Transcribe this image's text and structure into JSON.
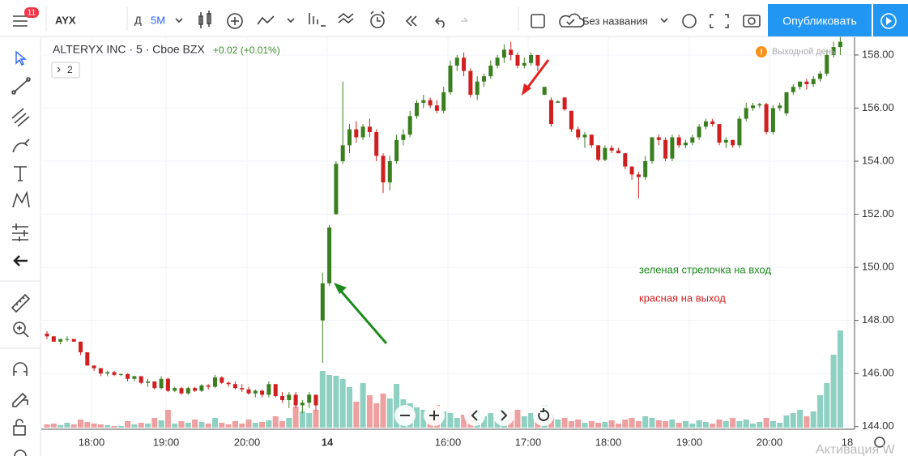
{
  "toolbar": {
    "badge": "11",
    "symbol": "AYX",
    "interval_prefix": "Д",
    "interval": "5М",
    "layout_name": "Без названия",
    "publish": "Опубликовать"
  },
  "legend": {
    "title": "ALTERYX INC · 5 · Cboe BZX",
    "change": "+0.02 (+0.01%)",
    "collapsed": "2",
    "status": "Выходной день"
  },
  "chart_data": {
    "type": "candlestick",
    "candles": [
      [
        147.5,
        147.6,
        147.3,
        147.4,
        4
      ],
      [
        147.4,
        147.4,
        147.2,
        147.2,
        5
      ],
      [
        147.2,
        147.3,
        147.1,
        147.3,
        3
      ],
      [
        147.3,
        147.4,
        147.2,
        147.3,
        6
      ],
      [
        147.3,
        147.3,
        147.2,
        147.2,
        4
      ],
      [
        147.2,
        147.2,
        146.7,
        146.8,
        10
      ],
      [
        146.8,
        146.8,
        146.3,
        146.3,
        7
      ],
      [
        146.3,
        146.3,
        146.1,
        146.2,
        5
      ],
      [
        146.2,
        146.2,
        145.9,
        146.0,
        4
      ],
      [
        146.0,
        146.1,
        145.9,
        146.05,
        3
      ],
      [
        146.05,
        146.1,
        145.9,
        145.95,
        2
      ],
      [
        145.95,
        146.0,
        145.9,
        145.98,
        2
      ],
      [
        145.98,
        146.0,
        145.7,
        145.8,
        8
      ],
      [
        145.8,
        145.9,
        145.7,
        145.9,
        4
      ],
      [
        145.9,
        145.9,
        145.6,
        145.65,
        6
      ],
      [
        145.65,
        145.8,
        145.5,
        145.7,
        5
      ],
      [
        145.7,
        145.7,
        145.4,
        145.45,
        12
      ],
      [
        145.45,
        145.9,
        145.4,
        145.8,
        9
      ],
      [
        145.8,
        145.85,
        145.3,
        145.35,
        22
      ],
      [
        145.35,
        145.5,
        145.3,
        145.45,
        5
      ],
      [
        145.45,
        145.5,
        145.2,
        145.25,
        8
      ],
      [
        145.25,
        145.5,
        145.2,
        145.45,
        6
      ],
      [
        145.45,
        145.5,
        145.3,
        145.35,
        10
      ],
      [
        145.35,
        145.6,
        145.3,
        145.55,
        7
      ],
      [
        145.55,
        145.6,
        145.4,
        145.5,
        5
      ],
      [
        145.5,
        145.95,
        145.45,
        145.85,
        12
      ],
      [
        145.85,
        145.9,
        145.6,
        145.65,
        6
      ],
      [
        145.65,
        145.7,
        145.5,
        145.6,
        4
      ],
      [
        145.6,
        145.7,
        145.4,
        145.45,
        8
      ],
      [
        145.45,
        145.6,
        145.3,
        145.4,
        5
      ],
      [
        145.4,
        145.5,
        145.2,
        145.25,
        10
      ],
      [
        145.25,
        145.4,
        145.1,
        145.35,
        6
      ],
      [
        145.35,
        145.4,
        145.1,
        145.2,
        7
      ],
      [
        145.2,
        145.7,
        145.1,
        145.6,
        9
      ],
      [
        145.6,
        145.6,
        145.1,
        145.15,
        14
      ],
      [
        145.15,
        145.3,
        144.9,
        145.0,
        8
      ],
      [
        145.0,
        145.3,
        144.7,
        145.2,
        12
      ],
      [
        145.2,
        145.3,
        144.7,
        144.8,
        26
      ],
      [
        144.8,
        145.0,
        144.5,
        144.9,
        20
      ],
      [
        144.9,
        145.3,
        144.7,
        145.2,
        18
      ],
      [
        145.2,
        145.2,
        144.6,
        144.8,
        22
      ],
      [
        148.0,
        149.8,
        146.4,
        149.4,
        70
      ],
      [
        149.4,
        151.6,
        149.3,
        151.5,
        65
      ],
      [
        152.0,
        154.0,
        152.0,
        153.9,
        64
      ],
      [
        154.0,
        157.0,
        153.9,
        154.6,
        60
      ],
      [
        154.6,
        155.4,
        154.3,
        155.2,
        50
      ],
      [
        155.2,
        155.5,
        154.7,
        154.9,
        32
      ],
      [
        154.9,
        155.4,
        154.8,
        155.3,
        55
      ],
      [
        155.3,
        155.6,
        154.9,
        155.1,
        40
      ],
      [
        155.1,
        155.2,
        154.0,
        154.2,
        30
      ],
      [
        154.2,
        154.3,
        152.8,
        153.2,
        42
      ],
      [
        153.2,
        154.2,
        152.9,
        154.0,
        36
      ],
      [
        154.0,
        155.0,
        153.9,
        154.8,
        54
      ],
      [
        154.8,
        155.2,
        154.6,
        155.0,
        35
      ],
      [
        155.0,
        155.9,
        154.9,
        155.7,
        30
      ],
      [
        155.7,
        156.3,
        155.6,
        156.2,
        25
      ],
      [
        156.2,
        156.5,
        156.0,
        156.3,
        22
      ],
      [
        156.3,
        156.4,
        156.0,
        156.1,
        14
      ],
      [
        156.1,
        156.3,
        155.8,
        155.9,
        28
      ],
      [
        155.9,
        156.8,
        155.8,
        156.6,
        20
      ],
      [
        156.6,
        157.8,
        156.5,
        157.6,
        18
      ],
      [
        157.6,
        158.0,
        157.4,
        157.9,
        12
      ],
      [
        157.9,
        158.1,
        157.2,
        157.4,
        16
      ],
      [
        157.4,
        157.5,
        156.4,
        156.5,
        22
      ],
      [
        156.5,
        157.2,
        156.3,
        157.0,
        20
      ],
      [
        157.0,
        157.3,
        156.8,
        157.2,
        14
      ],
      [
        157.2,
        157.8,
        157.1,
        157.6,
        18
      ],
      [
        157.6,
        158.0,
        157.5,
        157.9,
        15
      ],
      [
        157.9,
        158.4,
        157.7,
        158.2,
        24
      ],
      [
        158.2,
        158.5,
        157.8,
        158.0,
        20
      ],
      [
        158.0,
        158.1,
        157.5,
        157.6,
        22
      ],
      [
        157.6,
        157.9,
        157.5,
        157.7,
        14
      ],
      [
        157.7,
        158.1,
        157.6,
        158.0,
        18
      ],
      [
        158.0,
        158.0,
        157.4,
        157.6,
        10
      ],
      [
        156.5,
        156.8,
        156.5,
        156.8,
        28
      ],
      [
        156.3,
        156.4,
        155.3,
        155.4,
        16
      ],
      [
        156.2,
        156.3,
        156.2,
        156.25,
        10
      ],
      [
        156.4,
        156.4,
        155.9,
        155.95,
        12
      ],
      [
        155.9,
        155.9,
        155.1,
        155.2,
        8
      ],
      [
        155.2,
        155.3,
        154.8,
        154.9,
        10
      ],
      [
        154.9,
        155.1,
        154.5,
        155.0,
        6
      ],
      [
        155.0,
        155.0,
        154.5,
        154.6,
        8
      ],
      [
        154.6,
        154.6,
        154.0,
        154.05,
        6
      ],
      [
        154.05,
        154.6,
        154.0,
        154.5,
        7
      ],
      [
        154.5,
        154.6,
        154.3,
        154.4,
        9
      ],
      [
        154.4,
        154.5,
        154.3,
        154.3,
        5
      ],
      [
        154.3,
        154.3,
        153.7,
        153.8,
        10
      ],
      [
        153.8,
        153.8,
        153.3,
        153.5,
        12
      ],
      [
        153.5,
        153.6,
        152.6,
        153.4,
        8
      ],
      [
        153.4,
        154.2,
        153.3,
        154.0,
        14
      ],
      [
        154.0,
        154.9,
        153.9,
        154.9,
        12
      ],
      [
        154.9,
        155.0,
        154.6,
        154.8,
        9
      ],
      [
        154.8,
        154.9,
        154.0,
        154.1,
        8
      ],
      [
        154.1,
        155.0,
        154.0,
        154.9,
        10
      ],
      [
        154.9,
        155.0,
        154.5,
        154.6,
        6
      ],
      [
        154.6,
        154.8,
        154.5,
        154.7,
        8
      ],
      [
        154.7,
        155.0,
        154.6,
        154.9,
        5
      ],
      [
        154.9,
        155.4,
        154.8,
        155.3,
        9
      ],
      [
        155.3,
        155.6,
        155.2,
        155.5,
        7
      ],
      [
        155.5,
        155.6,
        155.3,
        155.4,
        5
      ],
      [
        155.4,
        155.4,
        154.6,
        154.7,
        10
      ],
      [
        154.7,
        154.9,
        154.5,
        154.8,
        8
      ],
      [
        154.8,
        154.8,
        154.5,
        154.6,
        12
      ],
      [
        154.6,
        155.7,
        154.5,
        155.6,
        8
      ],
      [
        155.6,
        156.2,
        155.5,
        156.0,
        10
      ],
      [
        156.0,
        156.2,
        155.9,
        156.1,
        5
      ],
      [
        156.1,
        156.2,
        156.0,
        156.15,
        7
      ],
      [
        156.15,
        156.2,
        155.0,
        155.1,
        12
      ],
      [
        155.1,
        156.1,
        155.0,
        156.0,
        8
      ],
      [
        156.0,
        156.2,
        155.9,
        156.1,
        6
      ],
      [
        155.8,
        156.6,
        155.7,
        156.6,
        15
      ],
      [
        156.6,
        156.9,
        156.5,
        156.8,
        18
      ],
      [
        156.8,
        157.0,
        156.7,
        157.0,
        22
      ],
      [
        157.0,
        157.1,
        156.7,
        156.9,
        14
      ],
      [
        156.9,
        157.2,
        156.8,
        157.1,
        20
      ],
      [
        157.1,
        157.4,
        157.0,
        157.3,
        40
      ],
      [
        157.3,
        158.2,
        157.2,
        158.0,
        55
      ],
      [
        158.0,
        158.5,
        157.9,
        158.3,
        90
      ],
      [
        158.3,
        158.7,
        158.0,
        158.5,
        120
      ]
    ],
    "ylim": [
      143.9,
      158.7
    ],
    "yticks": [
      {
        "value": 144,
        "label": "144.00"
      },
      {
        "value": 146,
        "label": "146.00"
      },
      {
        "value": 148,
        "label": "148.00"
      },
      {
        "value": 150,
        "label": "150.00"
      },
      {
        "value": 152,
        "label": "152.00"
      },
      {
        "value": 154,
        "label": "154.00"
      },
      {
        "value": 156,
        "label": "156.00"
      },
      {
        "value": 158,
        "label": "158.00"
      }
    ],
    "xticks": [
      "18:00",
      "19:00",
      "20:00",
      "14",
      "16:00",
      "17:00",
      "18:00",
      "19:00",
      "20:00",
      "18"
    ],
    "grid": true,
    "colors": {
      "up": "#3a7f1f",
      "down": "#d01f1f",
      "volume_up": "#8ed0c1",
      "volume_down": "#ee9f9f"
    },
    "annotations": [
      "зеленая стрелочка на вход",
      "красная на выход"
    ]
  },
  "watermark": "Активация W"
}
